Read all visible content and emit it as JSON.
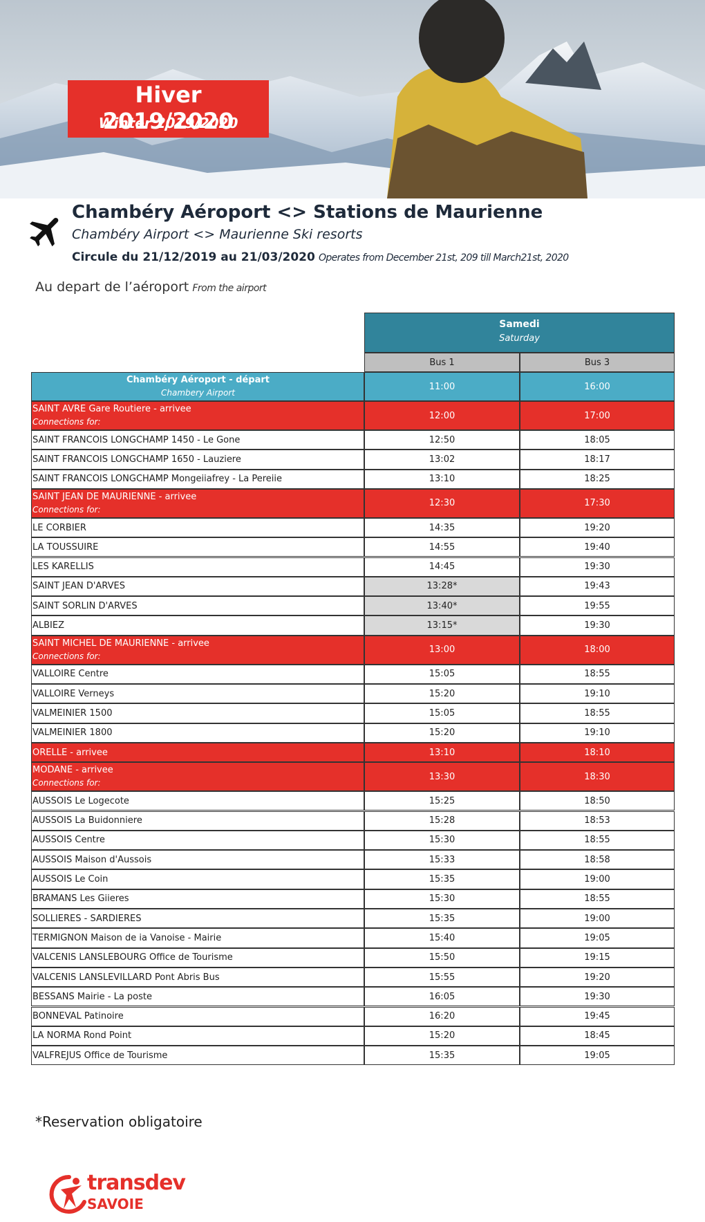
{
  "header": {
    "title": "Hiver 2019/2020",
    "subtitle": "Winter 2019/2020"
  },
  "route": {
    "title": "Chambéry Aéroport <> Stations de Maurienne",
    "subtitle": "Chambéry Airport <> Maurienne Ski resorts",
    "period": "Circule du 21/12/2019 au 21/03/2020",
    "period_en": "Operates from December 21st, 209 till March21st, 2020"
  },
  "direction": {
    "label": "Au depart de l’aéroport",
    "label_en": "From the airport"
  },
  "table": {
    "day": "Samedi",
    "day_en": "Saturday",
    "columns": [
      "Bus 1",
      "Bus 3"
    ],
    "rows": [
      {
        "name": "Chambéry Aéroport - départ",
        "sub": "Chambery Airport",
        "bus1": "11:00",
        "bus3": "16:00",
        "fill": "#4bacc6",
        "align": "center"
      },
      {
        "name": "SAINT AVRE Gare Routiere - arrivee",
        "sub": "Connections for:",
        "bus1": "12:00",
        "bus3": "17:00",
        "fill": "#e5302a"
      },
      {
        "name": "SAINT FRANCOIS LONGCHAMP 1450 - Le Gone",
        "bus1": "12:50",
        "bus3": "18:05"
      },
      {
        "name": "SAINT FRANCOIS LONGCHAMP 1650 - Lauziere",
        "bus1": "13:02",
        "bus3": "18:17"
      },
      {
        "name": "SAINT FRANCOIS LONGCHAMP Mongeiiafrey - La Pereiie",
        "bus1": "13:10",
        "bus3": "18:25"
      },
      {
        "name": "SAINT JEAN DE MAURIENNE - arrivee",
        "sub": "Connections for:",
        "bus1": "12:30",
        "bus3": "17:30",
        "fill": "#e5302a"
      },
      {
        "name": "LE CORBIER",
        "bus1": "14:35",
        "bus3": "19:20"
      },
      {
        "name": "LA TOUSSUIRE",
        "bus1": "14:55",
        "bus3": "19:40"
      },
      {
        "name": "LES KARELLIS",
        "bus1": "14:45",
        "bus3": "19:30"
      },
      {
        "name": "SAINT JEAN D'ARVES",
        "bus1": "13:28*",
        "bus3": "19:43",
        "bus1_fill": "#d9d9d9"
      },
      {
        "name": "SAINT SORLIN D'ARVES",
        "bus1": "13:40*",
        "bus3": "19:55",
        "bus1_fill": "#d9d9d9"
      },
      {
        "name": "ALBIEZ",
        "bus1": "13:15*",
        "bus3": "19:30",
        "bus1_fill": "#d9d9d9"
      },
      {
        "name": "SAINT MICHEL DE MAURIENNE - arrivee",
        "sub": "Connections for:",
        "bus1": "13:00",
        "bus3": "18:00",
        "fill": "#e5302a"
      },
      {
        "name": "VALLOIRE Centre",
        "bus1": "15:05",
        "bus3": "18:55"
      },
      {
        "name": "VALLOIRE Verneys",
        "bus1": "15:20",
        "bus3": "19:10"
      },
      {
        "name": "VALMEINIER 1500",
        "bus1": "15:05",
        "bus3": "18:55"
      },
      {
        "name": "VALMEINIER 1800",
        "bus1": "15:20",
        "bus3": "19:10"
      },
      {
        "name": "ORELLE - arrivee",
        "bus1": "13:10",
        "bus3": "18:10",
        "fill": "#e5302a"
      },
      {
        "name": "MODANE - arrivee",
        "sub": "Connections for:",
        "bus1": "13:30",
        "bus3": "18:30",
        "fill": "#e5302a"
      },
      {
        "name": "AUSSOIS Le Logecote",
        "bus1": "15:25",
        "bus3": "18:50"
      },
      {
        "name": "AUSSOIS La Buidonniere",
        "bus1": "15:28",
        "bus3": "18:53"
      },
      {
        "name": "AUSSOIS Centre",
        "bus1": "15:30",
        "bus3": "18:55"
      },
      {
        "name": "AUSSOIS Maison d'Aussois",
        "bus1": "15:33",
        "bus3": "18:58"
      },
      {
        "name": "AUSSOIS Le Coin",
        "bus1": "15:35",
        "bus3": "19:00"
      },
      {
        "name": "BRAMANS Les Giieres",
        "bus1": "15:30",
        "bus3": "18:55"
      },
      {
        "name": "SOLLIERES - SARDIERES",
        "bus1": "15:35",
        "bus3": "19:00"
      },
      {
        "name": "TERMIGNON Maison de ia Vanoise - Mairie",
        "bus1": "15:40",
        "bus3": "19:05"
      },
      {
        "name": "VALCENIS LANSLEBOURG Office de Tourisme",
        "bus1": "15:50",
        "bus3": "19:15"
      },
      {
        "name": "VALCENIS LANSLEVILLARD Pont Abris Bus",
        "bus1": "15:55",
        "bus3": "19:20"
      },
      {
        "name": "BESSANS Mairie - La poste",
        "bus1": "16:05",
        "bus3": "19:30"
      },
      {
        "name": "BONNEVAL Patinoire",
        "bus1": "16:20",
        "bus3": "19:45"
      },
      {
        "name": "LA NORMA Rond Point",
        "bus1": "15:20",
        "bus3": "18:45"
      },
      {
        "name": "VALFREJUS Office de Tourisme",
        "bus1": "15:35",
        "bus3": "19:05"
      }
    ]
  },
  "footnote": "*Reservation obligatoire",
  "logo": {
    "name": "transdev",
    "region": "SAVOIE"
  }
}
